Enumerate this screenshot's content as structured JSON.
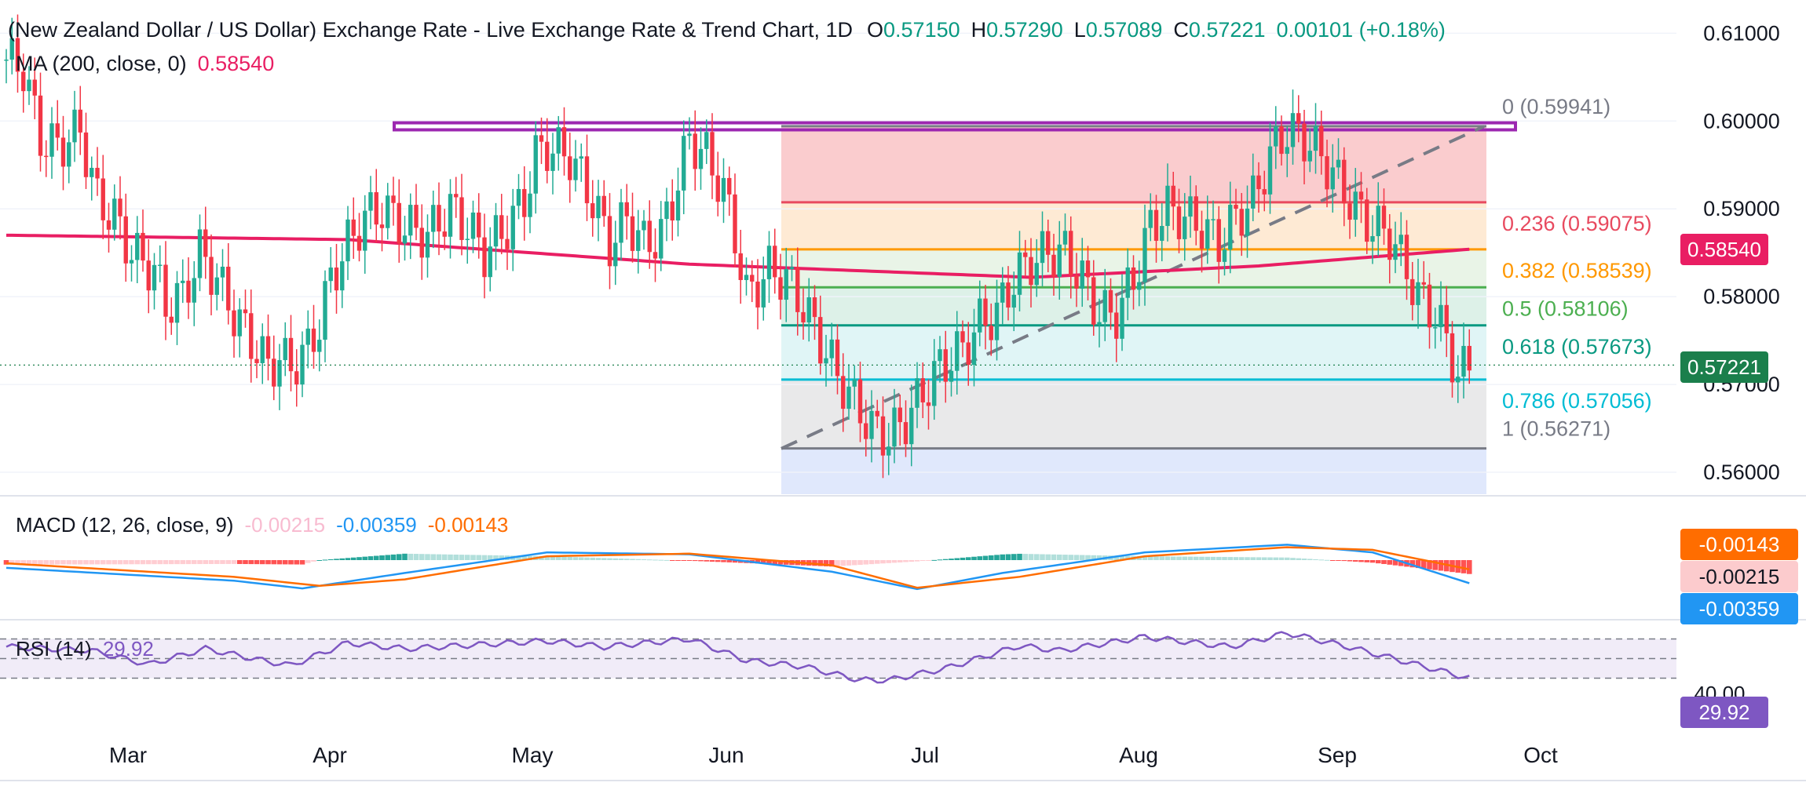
{
  "header": {
    "title": "(New Zealand Dollar / US Dollar) Exchange Rate - Live Exchange Rate & Trend Chart, 1D",
    "o_label": "O",
    "o_value": "0.57150",
    "h_label": "H",
    "h_value": "0.57290",
    "l_label": "L",
    "l_value": "0.57089",
    "c_label": "C",
    "c_value": "0.57221",
    "change": "0.00101 (+0.18%)"
  },
  "ma": {
    "label": "MA (200, close, 0)",
    "value": "0.58540",
    "badge": "0.58540"
  },
  "last_price_badge": "0.57221",
  "price_axis": [
    "0.61000",
    "0.60000",
    "0.59000",
    "0.58000",
    "0.57000",
    "0.56000"
  ],
  "fib_levels": [
    {
      "label": "0 (0.59941)",
      "price": 0.59941,
      "color": "#787b86",
      "zone": "#f8bbbd"
    },
    {
      "label": "0.236 (0.59075)",
      "price": 0.59075,
      "color": "#e84a5f",
      "zone": "#fde3c5"
    },
    {
      "label": "0.382 (0.58539)",
      "price": 0.58539,
      "color": "#ff9800",
      "zone": "#e1f0df"
    },
    {
      "label": "0.5 (0.58106)",
      "price": 0.58106,
      "color": "#4caf50",
      "zone": "#d2ece0"
    },
    {
      "label": "0.618 (0.57673)",
      "price": 0.57673,
      "color": "#089981",
      "zone": "#d5f1f3"
    },
    {
      "label": "0.786 (0.57056)",
      "price": 0.57056,
      "color": "#00bcd4",
      "zone": "#e2e2e3"
    },
    {
      "label": "1 (0.56271)",
      "price": 0.56271,
      "color": "#787b86",
      "zone": "#d6e0fb"
    }
  ],
  "macd": {
    "label": "MACD (12, 26, close, 9)",
    "hist": "-0.00215",
    "macd": "-0.00359",
    "signal": "-0.00143",
    "badge_signal": "-0.00143",
    "badge_hist": "-0.00215",
    "badge_macd": "-0.00359"
  },
  "rsi": {
    "label": "RSI (14)",
    "value": "29.92",
    "badge": "29.92",
    "level_label": "40.00"
  },
  "months": [
    "Mar",
    "Apr",
    "May",
    "Jun",
    "Jul",
    "Aug",
    "Sep",
    "Oct"
  ],
  "colors": {
    "up": "#22ab94",
    "down": "#f23645",
    "ma": "#e91e63",
    "macd": "#2196f3",
    "signal": "#ff6d00",
    "rsi": "#7e57c2",
    "resistance_box": "#9c27b0"
  },
  "chart_data": {
    "type": "candlestick",
    "title": "(New Zealand Dollar / US Dollar) Exchange Rate - Live Exchange Rate & Trend Chart, 1D",
    "x_axis_ticks": [
      "Mar",
      "Apr",
      "May",
      "Jun",
      "Jul",
      "Aug",
      "Sep",
      "Oct"
    ],
    "y_axis_ticks": [
      0.61,
      0.6,
      0.59,
      0.58,
      0.57,
      0.56
    ],
    "ylim": [
      0.5575,
      0.612
    ],
    "close_path": [
      [
        0,
        0.607
      ],
      [
        3,
        0.606
      ],
      [
        6,
        0.598
      ],
      [
        9,
        0.597
      ],
      [
        13,
        0.599
      ],
      [
        16,
        0.591
      ],
      [
        19,
        0.589
      ],
      [
        22,
        0.585
      ],
      [
        26,
        0.583
      ],
      [
        28,
        0.579
      ],
      [
        31,
        0.58
      ],
      [
        34,
        0.585
      ],
      [
        37,
        0.582
      ],
      [
        40,
        0.578
      ],
      [
        43,
        0.575
      ],
      [
        46,
        0.572
      ],
      [
        48,
        0.573
      ],
      [
        50,
        0.572
      ],
      [
        53,
        0.574
      ],
      [
        55,
        0.577
      ],
      [
        57,
        0.582
      ],
      [
        60,
        0.586
      ],
      [
        63,
        0.589
      ],
      [
        66,
        0.59
      ],
      [
        70,
        0.588
      ],
      [
        74,
        0.587
      ],
      [
        78,
        0.59
      ],
      [
        81,
        0.588
      ],
      [
        84,
        0.585
      ],
      [
        88,
        0.588
      ],
      [
        91,
        0.591
      ],
      [
        93,
        0.596
      ],
      [
        95,
        0.597
      ],
      [
        99,
        0.596
      ],
      [
        103,
        0.591
      ],
      [
        106,
        0.586
      ],
      [
        109,
        0.589
      ],
      [
        112,
        0.586
      ],
      [
        115,
        0.587
      ],
      [
        117,
        0.591
      ],
      [
        120,
        0.598
      ],
      [
        123,
        0.596
      ],
      [
        126,
        0.592
      ],
      [
        128,
        0.587
      ],
      [
        130,
        0.58
      ],
      [
        134,
        0.583
      ],
      [
        137,
        0.582
      ],
      [
        140,
        0.579
      ],
      [
        143,
        0.575
      ],
      [
        146,
        0.571
      ],
      [
        149,
        0.568
      ],
      [
        152,
        0.565
      ],
      [
        155,
        0.564
      ],
      [
        158,
        0.566
      ],
      [
        161,
        0.569
      ],
      [
        164,
        0.572
      ],
      [
        168,
        0.574
      ],
      [
        171,
        0.577
      ],
      [
        174,
        0.578
      ],
      [
        177,
        0.582
      ],
      [
        180,
        0.584
      ],
      [
        183,
        0.585
      ],
      [
        186,
        0.585
      ],
      [
        189,
        0.582
      ],
      [
        192,
        0.578
      ],
      [
        195,
        0.578
      ],
      [
        198,
        0.582
      ],
      [
        201,
        0.588
      ],
      [
        204,
        0.59
      ],
      [
        207,
        0.589
      ],
      [
        210,
        0.588
      ],
      [
        213,
        0.586
      ],
      [
        216,
        0.589
      ],
      [
        219,
        0.591
      ],
      [
        222,
        0.596
      ],
      [
        225,
        0.599
      ],
      [
        228,
        0.598
      ],
      [
        231,
        0.596
      ],
      [
        234,
        0.593
      ],
      [
        237,
        0.59
      ],
      [
        240,
        0.588
      ],
      [
        243,
        0.587
      ],
      [
        246,
        0.583
      ],
      [
        248,
        0.58
      ],
      [
        251,
        0.578
      ],
      [
        253,
        0.575
      ],
      [
        255,
        0.571
      ],
      [
        257,
        0.5722
      ]
    ],
    "ma200_path": [
      [
        0,
        0.587
      ],
      [
        60,
        0.5865
      ],
      [
        120,
        0.5837
      ],
      [
        180,
        0.5822
      ],
      [
        220,
        0.5835
      ],
      [
        257,
        0.5854
      ]
    ],
    "macd_path": [
      [
        0,
        -1.2
      ],
      [
        40,
        -3.2
      ],
      [
        52,
        -4.4
      ],
      [
        70,
        -2.0
      ],
      [
        95,
        1.2
      ],
      [
        120,
        0.9
      ],
      [
        145,
        -1.8
      ],
      [
        160,
        -4.5
      ],
      [
        175,
        -2.0
      ],
      [
        200,
        1.2
      ],
      [
        225,
        2.4
      ],
      [
        240,
        1.2
      ],
      [
        257,
        -3.59
      ]
    ],
    "signal_path": [
      [
        0,
        -0.5
      ],
      [
        40,
        -2.6
      ],
      [
        55,
        -4.0
      ],
      [
        70,
        -3.0
      ],
      [
        95,
        0.6
      ],
      [
        120,
        1.0
      ],
      [
        145,
        -0.8
      ],
      [
        160,
        -4.3
      ],
      [
        178,
        -2.6
      ],
      [
        200,
        0.6
      ],
      [
        225,
        2.0
      ],
      [
        240,
        1.6
      ],
      [
        257,
        -1.43
      ]
    ],
    "rsi_path": [
      [
        0,
        62
      ],
      [
        15,
        58
      ],
      [
        25,
        44
      ],
      [
        35,
        60
      ],
      [
        45,
        48
      ],
      [
        50,
        43
      ],
      [
        60,
        66
      ],
      [
        70,
        60
      ],
      [
        95,
        68
      ],
      [
        105,
        62
      ],
      [
        120,
        70
      ],
      [
        130,
        48
      ],
      [
        140,
        42
      ],
      [
        150,
        28
      ],
      [
        155,
        28
      ],
      [
        165,
        40
      ],
      [
        178,
        63
      ],
      [
        185,
        58
      ],
      [
        200,
        72
      ],
      [
        215,
        62
      ],
      [
        225,
        76
      ],
      [
        235,
        63
      ],
      [
        245,
        48
      ],
      [
        257,
        29.92
      ]
    ]
  }
}
